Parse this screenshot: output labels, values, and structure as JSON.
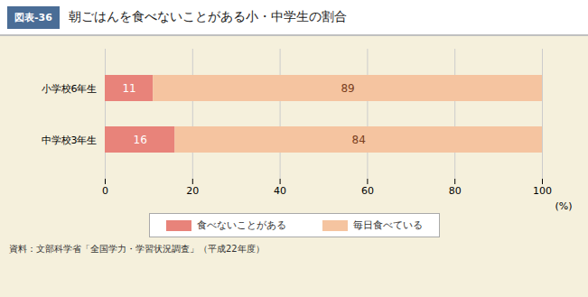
{
  "chart_data": {
    "type": "bar",
    "title": "朝ごはんを食べないことがある小・中学生の割合",
    "tag": "図表-36",
    "source": "資料：文部科学省「全国学力・学習状況調査」（平成22年度）",
    "orientation": "horizontal",
    "stacked": true,
    "categories": [
      "小学校6年生",
      "中学校3年生"
    ],
    "series": [
      {
        "name": "食べないことがある",
        "color": "#e8837a",
        "values": [
          11,
          16
        ]
      },
      {
        "name": "毎日食べている",
        "color": "#f5c4a0",
        "values": [
          89,
          84
        ]
      }
    ],
    "xlabel": "(%)",
    "xlim": [
      0,
      100
    ],
    "xticks": [
      0,
      20,
      40,
      60,
      80,
      100
    ],
    "grid": true,
    "legend": "bottom",
    "data_labels": true
  }
}
